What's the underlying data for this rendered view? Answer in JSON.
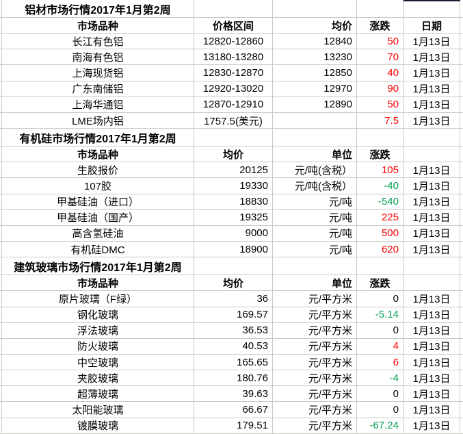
{
  "app": {
    "type": "spreadsheet-table",
    "date_label": "1月13日"
  },
  "colors": {
    "change_up": "#ff0000",
    "change_down": "#00a050",
    "change_flat": "#000000",
    "grid_line": "#c8cac4",
    "selection_border": "#1c1c3a"
  },
  "sections": [
    {
      "title": "铝材市场行情2017年1月第2周",
      "header": [
        "市场品种",
        "价格区间",
        "均价",
        "涨跌",
        "日期"
      ],
      "header_align": [
        "ac",
        "ac",
        "ar",
        "ac",
        "ac"
      ],
      "data_align": [
        "ac",
        "ac",
        "ar",
        "ar",
        "ac"
      ],
      "col_names": [
        "product",
        "price-range",
        "avg-price",
        "change",
        "date"
      ],
      "rows": [
        {
          "cells": [
            "长江有色铝",
            "12820-12860",
            "12840",
            "50",
            "1月13日"
          ],
          "dir": "up"
        },
        {
          "cells": [
            "南海有色铝",
            "13180-13280",
            "13230",
            "70",
            "1月13日"
          ],
          "dir": "up"
        },
        {
          "cells": [
            "上海现货铝",
            "12830-12870",
            "12850",
            "40",
            "1月13日"
          ],
          "dir": "up"
        },
        {
          "cells": [
            "广东南储铝",
            "12920-13020",
            "12970",
            "90",
            "1月13日"
          ],
          "dir": "up"
        },
        {
          "cells": [
            "上海华通铝",
            "12870-12910",
            "12890",
            "50",
            "1月13日"
          ],
          "dir": "up"
        },
        {
          "cells": [
            "LME场内铝",
            "1757.5(美元)",
            "",
            "7.5",
            "1月13日"
          ],
          "dir": "up"
        }
      ]
    },
    {
      "title": "有机硅市场行情2017年1月第2周",
      "header": [
        "市场品种",
        "均价",
        "单位",
        "涨跌",
        ""
      ],
      "header_align": [
        "ac",
        "ac",
        "ar",
        "ac",
        "ac"
      ],
      "data_align": [
        "ac",
        "ar",
        "ar",
        "ar",
        "ac"
      ],
      "col_names": [
        "product",
        "avg-price",
        "unit",
        "change",
        "date"
      ],
      "rows": [
        {
          "cells": [
            "生胶报价",
            "20125",
            "元/吨(含税）",
            "105",
            "1月13日"
          ],
          "dir": "up"
        },
        {
          "cells": [
            "107胶",
            "19330",
            "元/吨(含税）",
            "-40",
            "1月13日"
          ],
          "dir": "down"
        },
        {
          "cells": [
            "甲基硅油（进口）",
            "18830",
            "元/吨",
            "-540",
            "1月13日"
          ],
          "dir": "down"
        },
        {
          "cells": [
            "甲基硅油（国产）",
            "19325",
            "元/吨",
            "225",
            "1月13日"
          ],
          "dir": "up"
        },
        {
          "cells": [
            "高含氢硅油",
            "9000",
            "元/吨",
            "500",
            "1月13日"
          ],
          "dir": "up"
        },
        {
          "cells": [
            "有机硅DMC",
            "18900",
            "元/吨",
            "620",
            "1月13日"
          ],
          "dir": "up"
        }
      ]
    },
    {
      "title": "建筑玻璃市场行情2017年1月第2周",
      "header": [
        "市场品种",
        "均价",
        "单位",
        "涨跌",
        ""
      ],
      "header_align": [
        "ac",
        "ac",
        "ar",
        "ac",
        "ac"
      ],
      "data_align": [
        "ac",
        "ar",
        "ar",
        "ar",
        "ac"
      ],
      "col_names": [
        "product",
        "avg-price",
        "unit",
        "change",
        "date"
      ],
      "rows": [
        {
          "cells": [
            "原片玻璃（F绿）",
            "36",
            "元/平方米",
            "0",
            "1月13日"
          ],
          "dir": "flat"
        },
        {
          "cells": [
            "钢化玻璃",
            "169.57",
            "元/平方米",
            "-5.14",
            "1月13日"
          ],
          "dir": "down"
        },
        {
          "cells": [
            "浮法玻璃",
            "36.53",
            "元/平方米",
            "0",
            "1月13日"
          ],
          "dir": "flat"
        },
        {
          "cells": [
            "防火玻璃",
            "40.53",
            "元/平方米",
            "4",
            "1月13日"
          ],
          "dir": "up"
        },
        {
          "cells": [
            "中空玻璃",
            "165.65",
            "元/平方米",
            "6",
            "1月13日"
          ],
          "dir": "up"
        },
        {
          "cells": [
            "夹胶玻璃",
            "180.76",
            "元/平方米",
            "-4",
            "1月13日"
          ],
          "dir": "down"
        },
        {
          "cells": [
            "超薄玻璃",
            "39.63",
            "元/平方米",
            "0",
            "1月13日"
          ],
          "dir": "flat"
        },
        {
          "cells": [
            "太阳能玻璃",
            "66.67",
            "元/平方米",
            "0",
            "1月13日"
          ],
          "dir": "flat"
        },
        {
          "cells": [
            "镀膜玻璃",
            "179.51",
            "元/平方米",
            "-67.24",
            "1月13日"
          ],
          "dir": "down"
        }
      ]
    }
  ]
}
